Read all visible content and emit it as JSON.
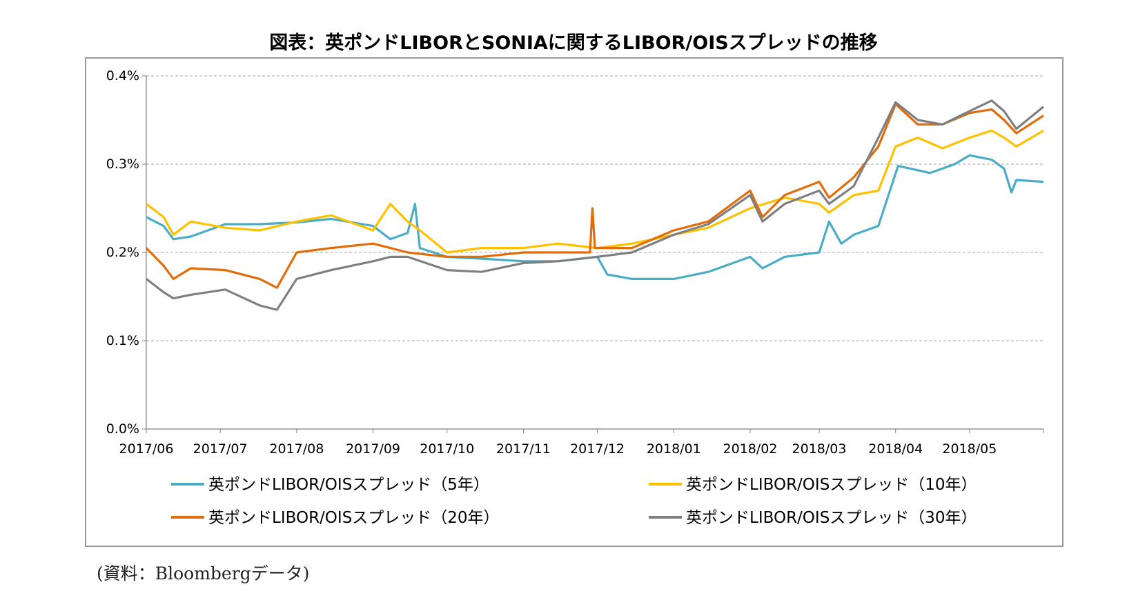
{
  "title": "図表：英ポンドLIBORとSONIAに関するLIBOR/OISスプレッドの推移",
  "source": "(資料：Bloombergデータ)",
  "colors": {
    "s5": "#4bacc6",
    "s10": "#ffc000",
    "s20": "#e36c0a",
    "s30": "#7f7f7f",
    "grid": "#a6a6a6",
    "axis": "#808080"
  },
  "chart_data": {
    "type": "line",
    "x_ticks": [
      "2017/06",
      "2017/07",
      "2017/08",
      "2017/09",
      "2017/10",
      "2017/11",
      "2017/12",
      "2018/01",
      "2018/02",
      "2018/03",
      "2018/04",
      "2018/05"
    ],
    "y_ticks": [
      "0.0%",
      "0.1%",
      "0.2%",
      "0.3%",
      "0.4%"
    ],
    "ylim": [
      0,
      0.4
    ],
    "grid": true,
    "legend": "bottom",
    "series": [
      {
        "name": "英ポンドLIBOR/OISスプレッド（5年）",
        "color": "#4bacc6",
        "points": [
          [
            "2017/06/01",
            0.24
          ],
          [
            "2017/06/08",
            0.23
          ],
          [
            "2017/06/12",
            0.215
          ],
          [
            "2017/06/19",
            0.218
          ],
          [
            "2017/07/03",
            0.232
          ],
          [
            "2017/07/17",
            0.232
          ],
          [
            "2017/08/01",
            0.234
          ],
          [
            "2017/08/15",
            0.238
          ],
          [
            "2017/09/01",
            0.23
          ],
          [
            "2017/09/08",
            0.215
          ],
          [
            "2017/09/15",
            0.222
          ],
          [
            "2017/09/18",
            0.255
          ],
          [
            "2017/09/20",
            0.205
          ],
          [
            "2017/10/01",
            0.195
          ],
          [
            "2017/10/15",
            0.193
          ],
          [
            "2017/11/01",
            0.19
          ],
          [
            "2017/11/15",
            0.19
          ],
          [
            "2017/12/01",
            0.195
          ],
          [
            "2017/12/05",
            0.175
          ],
          [
            "2017/12/15",
            0.17
          ],
          [
            "2018/01/01",
            0.17
          ],
          [
            "2018/01/15",
            0.178
          ],
          [
            "2018/02/01",
            0.195
          ],
          [
            "2018/02/06",
            0.182
          ],
          [
            "2018/02/15",
            0.195
          ],
          [
            "2018/03/01",
            0.2
          ],
          [
            "2018/03/05",
            0.235
          ],
          [
            "2018/03/10",
            0.21
          ],
          [
            "2018/03/15",
            0.22
          ],
          [
            "2018/03/25",
            0.23
          ],
          [
            "2018/04/02",
            0.298
          ],
          [
            "2018/04/15",
            0.29
          ],
          [
            "2018/04/25",
            0.3
          ],
          [
            "2018/05/01",
            0.31
          ],
          [
            "2018/05/10",
            0.305
          ],
          [
            "2018/05/15",
            0.295
          ],
          [
            "2018/05/18",
            0.268
          ],
          [
            "2018/05/20",
            0.282
          ],
          [
            "2018/05/31",
            0.28
          ]
        ]
      },
      {
        "name": "英ポンドLIBOR/OISスプレッド（10年）",
        "color": "#ffc000",
        "points": [
          [
            "2017/06/01",
            0.255
          ],
          [
            "2017/06/08",
            0.24
          ],
          [
            "2017/06/12",
            0.22
          ],
          [
            "2017/06/19",
            0.235
          ],
          [
            "2017/07/03",
            0.228
          ],
          [
            "2017/07/17",
            0.225
          ],
          [
            "2017/08/01",
            0.235
          ],
          [
            "2017/08/15",
            0.242
          ],
          [
            "2017/09/01",
            0.225
          ],
          [
            "2017/09/08",
            0.255
          ],
          [
            "2017/09/15",
            0.235
          ],
          [
            "2017/09/20",
            0.225
          ],
          [
            "2017/10/01",
            0.2
          ],
          [
            "2017/10/15",
            0.205
          ],
          [
            "2017/11/01",
            0.205
          ],
          [
            "2017/11/15",
            0.21
          ],
          [
            "2017/12/01",
            0.205
          ],
          [
            "2017/12/15",
            0.21
          ],
          [
            "2018/01/01",
            0.22
          ],
          [
            "2018/01/15",
            0.228
          ],
          [
            "2018/02/01",
            0.25
          ],
          [
            "2018/02/15",
            0.262
          ],
          [
            "2018/03/01",
            0.255
          ],
          [
            "2018/03/05",
            0.245
          ],
          [
            "2018/03/15",
            0.265
          ],
          [
            "2018/03/25",
            0.27
          ],
          [
            "2018/04/01",
            0.32
          ],
          [
            "2018/04/10",
            0.33
          ],
          [
            "2018/04/20",
            0.318
          ],
          [
            "2018/05/01",
            0.33
          ],
          [
            "2018/05/10",
            0.338
          ],
          [
            "2018/05/15",
            0.33
          ],
          [
            "2018/05/20",
            0.32
          ],
          [
            "2018/05/31",
            0.338
          ]
        ]
      },
      {
        "name": "英ポンドLIBOR/OISスプレッド（20年）",
        "color": "#e36c0a",
        "points": [
          [
            "2017/06/01",
            0.205
          ],
          [
            "2017/06/08",
            0.185
          ],
          [
            "2017/06/12",
            0.17
          ],
          [
            "2017/06/19",
            0.182
          ],
          [
            "2017/07/03",
            0.18
          ],
          [
            "2017/07/17",
            0.17
          ],
          [
            "2017/07/24",
            0.16
          ],
          [
            "2017/08/01",
            0.2
          ],
          [
            "2017/08/15",
            0.205
          ],
          [
            "2017/09/01",
            0.21
          ],
          [
            "2017/09/08",
            0.205
          ],
          [
            "2017/09/15",
            0.2
          ],
          [
            "2017/10/01",
            0.195
          ],
          [
            "2017/10/15",
            0.195
          ],
          [
            "2017/11/01",
            0.2
          ],
          [
            "2017/11/15",
            0.2
          ],
          [
            "2017/11/28",
            0.2
          ],
          [
            "2017/11/29",
            0.25
          ],
          [
            "2017/11/30",
            0.205
          ],
          [
            "2017/12/15",
            0.205
          ],
          [
            "2018/01/01",
            0.225
          ],
          [
            "2018/01/15",
            0.235
          ],
          [
            "2018/02/01",
            0.27
          ],
          [
            "2018/02/06",
            0.24
          ],
          [
            "2018/02/15",
            0.265
          ],
          [
            "2018/03/01",
            0.28
          ],
          [
            "2018/03/05",
            0.262
          ],
          [
            "2018/03/15",
            0.285
          ],
          [
            "2018/03/25",
            0.32
          ],
          [
            "2018/04/01",
            0.368
          ],
          [
            "2018/04/10",
            0.345
          ],
          [
            "2018/04/20",
            0.345
          ],
          [
            "2018/05/01",
            0.358
          ],
          [
            "2018/05/10",
            0.362
          ],
          [
            "2018/05/15",
            0.35
          ],
          [
            "2018/05/20",
            0.335
          ],
          [
            "2018/05/31",
            0.355
          ]
        ]
      },
      {
        "name": "英ポンドLIBOR/OISスプレッド（30年）",
        "color": "#7f7f7f",
        "points": [
          [
            "2017/06/01",
            0.17
          ],
          [
            "2017/06/08",
            0.155
          ],
          [
            "2017/06/12",
            0.148
          ],
          [
            "2017/06/19",
            0.152
          ],
          [
            "2017/07/03",
            0.158
          ],
          [
            "2017/07/17",
            0.14
          ],
          [
            "2017/07/24",
            0.135
          ],
          [
            "2017/08/01",
            0.17
          ],
          [
            "2017/08/15",
            0.18
          ],
          [
            "2017/09/01",
            0.19
          ],
          [
            "2017/09/08",
            0.195
          ],
          [
            "2017/09/15",
            0.195
          ],
          [
            "2017/10/01",
            0.18
          ],
          [
            "2017/10/15",
            0.178
          ],
          [
            "2017/11/01",
            0.188
          ],
          [
            "2017/11/15",
            0.19
          ],
          [
            "2017/12/01",
            0.195
          ],
          [
            "2017/12/15",
            0.2
          ],
          [
            "2018/01/01",
            0.22
          ],
          [
            "2018/01/15",
            0.232
          ],
          [
            "2018/02/01",
            0.265
          ],
          [
            "2018/02/06",
            0.235
          ],
          [
            "2018/02/15",
            0.255
          ],
          [
            "2018/03/01",
            0.27
          ],
          [
            "2018/03/05",
            0.255
          ],
          [
            "2018/03/15",
            0.275
          ],
          [
            "2018/03/25",
            0.33
          ],
          [
            "2018/04/01",
            0.37
          ],
          [
            "2018/04/10",
            0.35
          ],
          [
            "2018/04/20",
            0.345
          ],
          [
            "2018/05/01",
            0.36
          ],
          [
            "2018/05/10",
            0.372
          ],
          [
            "2018/05/15",
            0.36
          ],
          [
            "2018/05/20",
            0.34
          ],
          [
            "2018/05/31",
            0.365
          ]
        ]
      }
    ]
  }
}
